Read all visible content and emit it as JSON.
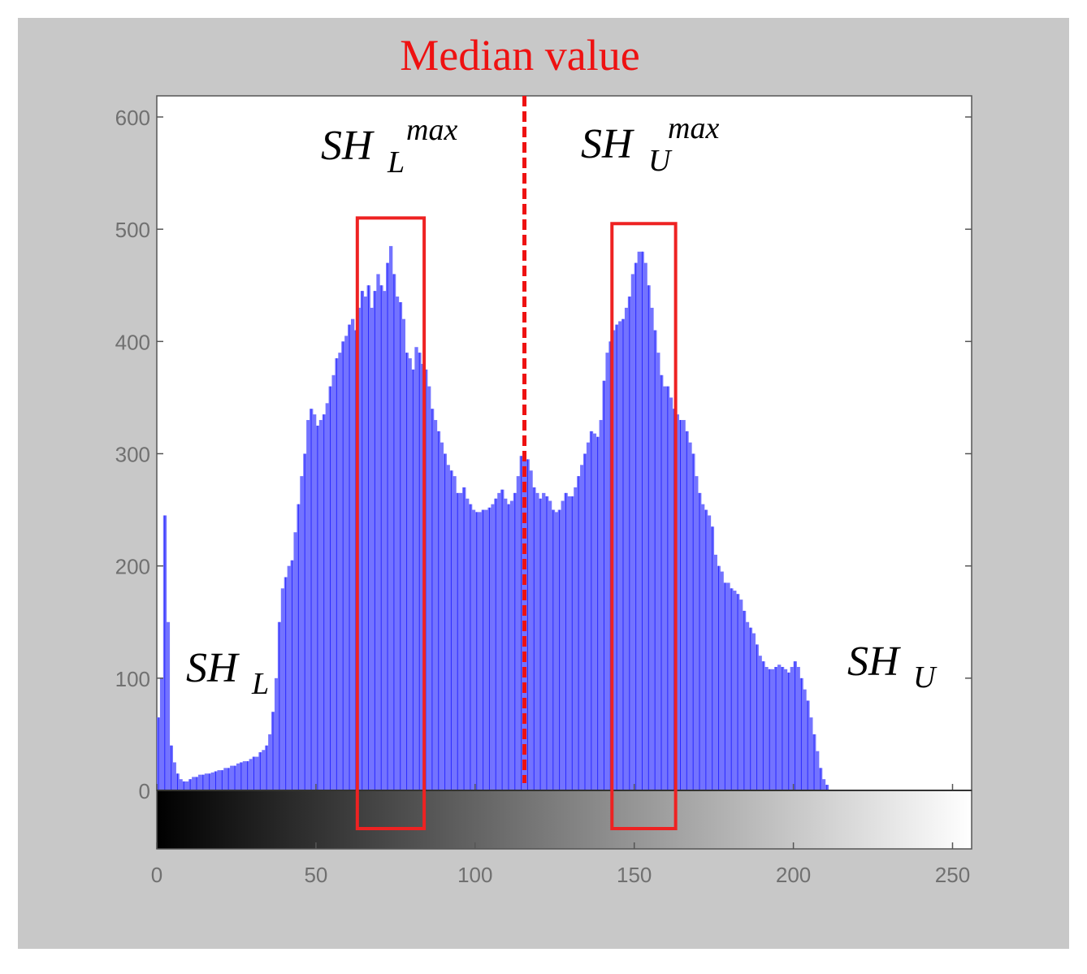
{
  "chart_data": {
    "type": "bar",
    "title": "Median value",
    "xlabel": "",
    "ylabel": "",
    "xlim": [
      0,
      256
    ],
    "ylim": [
      0,
      600
    ],
    "x_ticks": [
      0,
      50,
      100,
      150,
      200,
      250
    ],
    "y_ticks": [
      0,
      100,
      200,
      300,
      400,
      500,
      600
    ],
    "grid": false,
    "bar_color": "#7373ff",
    "bar_edge_color": "#2a2aff",
    "median_value": 115,
    "median_color": "#ee1111",
    "colorbar": "grayscale 0-255",
    "counts": [
      65,
      100,
      245,
      150,
      40,
      25,
      15,
      10,
      8,
      8,
      10,
      12,
      12,
      14,
      14,
      15,
      15,
      16,
      17,
      18,
      18,
      20,
      20,
      22,
      22,
      24,
      25,
      26,
      26,
      28,
      30,
      30,
      34,
      36,
      40,
      50,
      70,
      100,
      150,
      180,
      190,
      200,
      205,
      230,
      255,
      280,
      300,
      330,
      340,
      335,
      325,
      330,
      335,
      345,
      360,
      370,
      385,
      390,
      400,
      405,
      415,
      420,
      410,
      430,
      445,
      440,
      450,
      430,
      445,
      460,
      450,
      445,
      470,
      485,
      460,
      440,
      435,
      420,
      390,
      385,
      375,
      395,
      390,
      380,
      375,
      360,
      340,
      330,
      320,
      310,
      300,
      290,
      285,
      280,
      265,
      265,
      270,
      260,
      255,
      250,
      248,
      248,
      250,
      250,
      252,
      255,
      260,
      265,
      268,
      260,
      255,
      258,
      265,
      280,
      298,
      300,
      295,
      285,
      270,
      265,
      260,
      265,
      262,
      258,
      250,
      248,
      250,
      258,
      265,
      262,
      262,
      270,
      280,
      290,
      300,
      310,
      320,
      318,
      315,
      330,
      365,
      390,
      400,
      410,
      415,
      418,
      420,
      430,
      440,
      460,
      470,
      480,
      480,
      470,
      450,
      430,
      410,
      390,
      370,
      360,
      360,
      350,
      340,
      335,
      330,
      330,
      320,
      310,
      300,
      280,
      265,
      255,
      250,
      245,
      235,
      210,
      200,
      195,
      185,
      185,
      180,
      178,
      175,
      170,
      160,
      150,
      145,
      140,
      130,
      120,
      115,
      110,
      108,
      108,
      110,
      112,
      110,
      108,
      105,
      110,
      115,
      110,
      100,
      90,
      80,
      65,
      50,
      35,
      20,
      10,
      5,
      0,
      0,
      0,
      0,
      0,
      0,
      0,
      0,
      0,
      0,
      0,
      0,
      0,
      0,
      0,
      0,
      0,
      0,
      0,
      0,
      0,
      0,
      0,
      0,
      0,
      0,
      0,
      0,
      0,
      0,
      0,
      0,
      0,
      0,
      0,
      0,
      0,
      0,
      0,
      0,
      0,
      0,
      0,
      0,
      0
    ],
    "annotations": [
      {
        "id": "sh-l-max",
        "base": "SH",
        "sub": "L",
        "sup": "max"
      },
      {
        "id": "sh-u-max",
        "base": "SH",
        "sub": "U",
        "sup": "max"
      },
      {
        "id": "sh-l",
        "base": "SH",
        "sub": "L",
        "sup": ""
      },
      {
        "id": "sh-u",
        "base": "SH",
        "sub": "U",
        "sup": ""
      }
    ],
    "highlight_boxes": [
      {
        "x_from": 63,
        "x_to": 84,
        "y_top": 510,
        "color": "#ee2222"
      },
      {
        "x_from": 143,
        "x_to": 163,
        "y_top": 505,
        "color": "#ee2222"
      }
    ]
  }
}
